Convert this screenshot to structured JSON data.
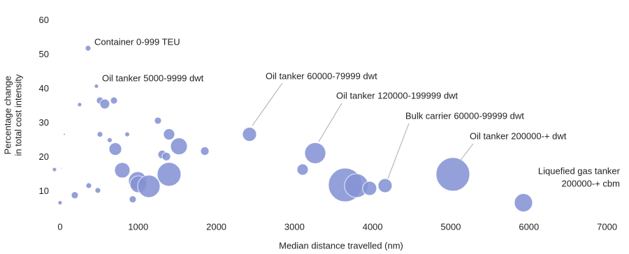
{
  "chart_data": {
    "type": "scatter",
    "x_label": "Median distance travelled (nm)",
    "y_label": [
      "Percentage change",
      "in total cost intensity"
    ],
    "color": "#8593d4",
    "xlim": [
      -200,
      7100
    ],
    "xticks": [
      0,
      1000,
      2000,
      3000,
      4000,
      5000,
      6000,
      7000
    ],
    "ylim": [
      2,
      64
    ],
    "yticks": [
      10,
      20,
      30,
      40,
      50,
      60
    ],
    "x": [
      358,
      465,
      510,
      572,
      689,
      250,
      510,
      54,
      859,
      635,
      707,
      1252,
      1395,
      1521,
      1852,
      1306,
      1360,
      796,
      993,
      1002,
      1136,
      1395,
      2424,
      3265,
      3104,
      3649,
      3792,
      3962,
      4159,
      5027,
      5930,
      367,
      483,
      188,
      930,
      0,
      -72,
      18
    ],
    "values": [
      51.9,
      40.8,
      36.6,
      35.6,
      36.6,
      35.4,
      26.7,
      26.7,
      26.7,
      25,
      22.4,
      30.7,
      26.7,
      23.2,
      21.8,
      20.8,
      20.2,
      16.2,
      13.1,
      12.1,
      11.5,
      15,
      26.7,
      21.2,
      16.4,
      11.9,
      11.7,
      10.9,
      11.7,
      15,
      6.7,
      11.7,
      10.3,
      8.9,
      7.7,
      6.7,
      16.4,
      16.8
    ],
    "sizes": [
      16,
      9,
      25,
      49,
      25,
      9,
      16,
      2,
      12,
      12,
      81,
      25,
      64,
      144,
      36,
      36,
      36,
      121,
      169,
      144,
      256,
      289,
      100,
      225,
      64,
      576,
      289,
      100,
      100,
      576,
      169,
      16,
      16,
      25,
      25,
      9,
      9,
      1
    ],
    "annotations": [
      [
        "Container 0-999 TEU"
      ],
      [
        "Oil tanker 5000-9999 dwt"
      ],
      [
        "Oil tanker 60000-79999 dwt"
      ],
      [
        "Oil tanker 120000-199999 dwt"
      ],
      [
        "Bulk carrier 60000-99999 dwt"
      ],
      [
        "Oil tanker 200000-+ dwt"
      ],
      [
        "Liquefied gas tanker",
        "200000-+ cbm"
      ]
    ]
  }
}
